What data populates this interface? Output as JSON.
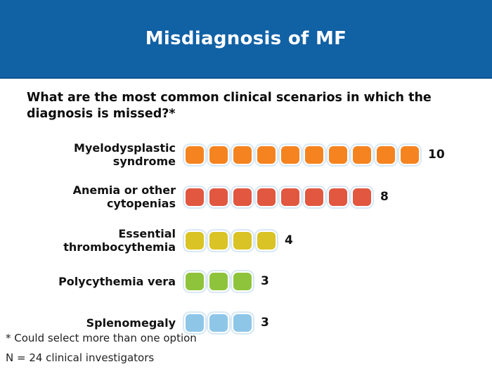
{
  "header": {
    "title": "Misdiagnosis of MF",
    "bg_color": "#1161A5",
    "text_color": "#FFFFFF"
  },
  "question": {
    "lines": [
      "What are the most common clinical scenarios in which the",
      "diagnosis is missed?*"
    ]
  },
  "chart_data": {
    "type": "bar",
    "variant": "pictogram-unit-squares",
    "title": "Misdiagnosis of MF",
    "subtitle": "What are the most common clinical scenarios in which the diagnosis is missed?*",
    "categories": [
      "Myelodysplastic syndrome",
      "Anemia or other cytopenias",
      "Essential thrombocythemia",
      "Polycythemia vera",
      "Splenomegaly"
    ],
    "category_display_lines": [
      [
        "Myelodysplastic",
        "syndrome"
      ],
      [
        "Anemia or other",
        "cytopenias"
      ],
      [
        "Essential",
        "thrombocythemia"
      ],
      [
        "Polycythemia vera"
      ],
      [
        "Splenomegaly"
      ]
    ],
    "values": [
      10,
      8,
      4,
      3,
      3
    ],
    "value_labels": [
      "10",
      "8",
      "4",
      "3",
      "3"
    ],
    "colors": [
      "#F58420",
      "#E15740",
      "#DAC324",
      "#8EC43C",
      "#8EC6E8"
    ],
    "square_halo_color": "#D8E8F4",
    "xlabel": "",
    "ylabel": "",
    "xlim": [
      0,
      10
    ],
    "grid": false,
    "legend": false,
    "orientation": "horizontal"
  },
  "footnotes": {
    "note1": "* Could select more than one option",
    "note2": "N = 24 clinical investigators"
  }
}
